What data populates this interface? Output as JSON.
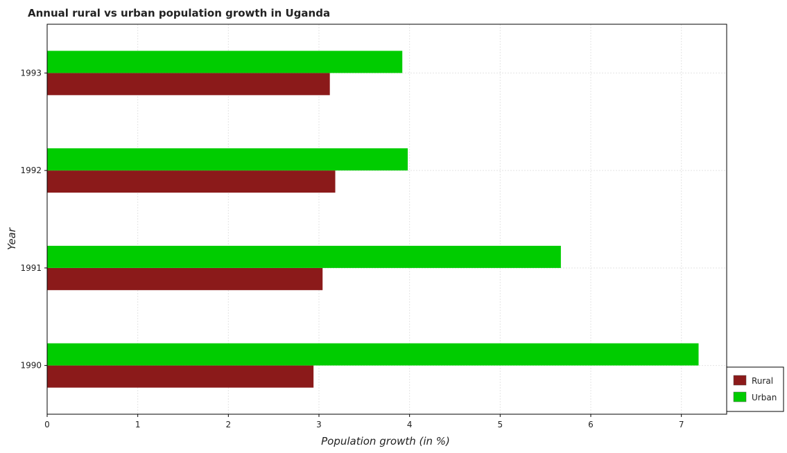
{
  "chart_data": {
    "type": "bar",
    "orientation": "horizontal",
    "title": "Annual rural vs urban population growth in Uganda",
    "xlabel": "Population growth (in %)",
    "ylabel": "Year",
    "categories": [
      "1990",
      "1991",
      "1992",
      "1993"
    ],
    "series": [
      {
        "name": "Rural",
        "color": "#8b1a1a",
        "values": [
          2.94,
          3.04,
          3.18,
          3.12
        ]
      },
      {
        "name": "Urban",
        "color": "#00cc00",
        "values": [
          7.19,
          5.67,
          3.98,
          3.92
        ]
      }
    ],
    "xlim": [
      0,
      7.5
    ],
    "xticks": [
      "0",
      "1",
      "2",
      "3",
      "4",
      "5",
      "6",
      "7"
    ],
    "grid": true,
    "legend_position": "bottom-right"
  }
}
